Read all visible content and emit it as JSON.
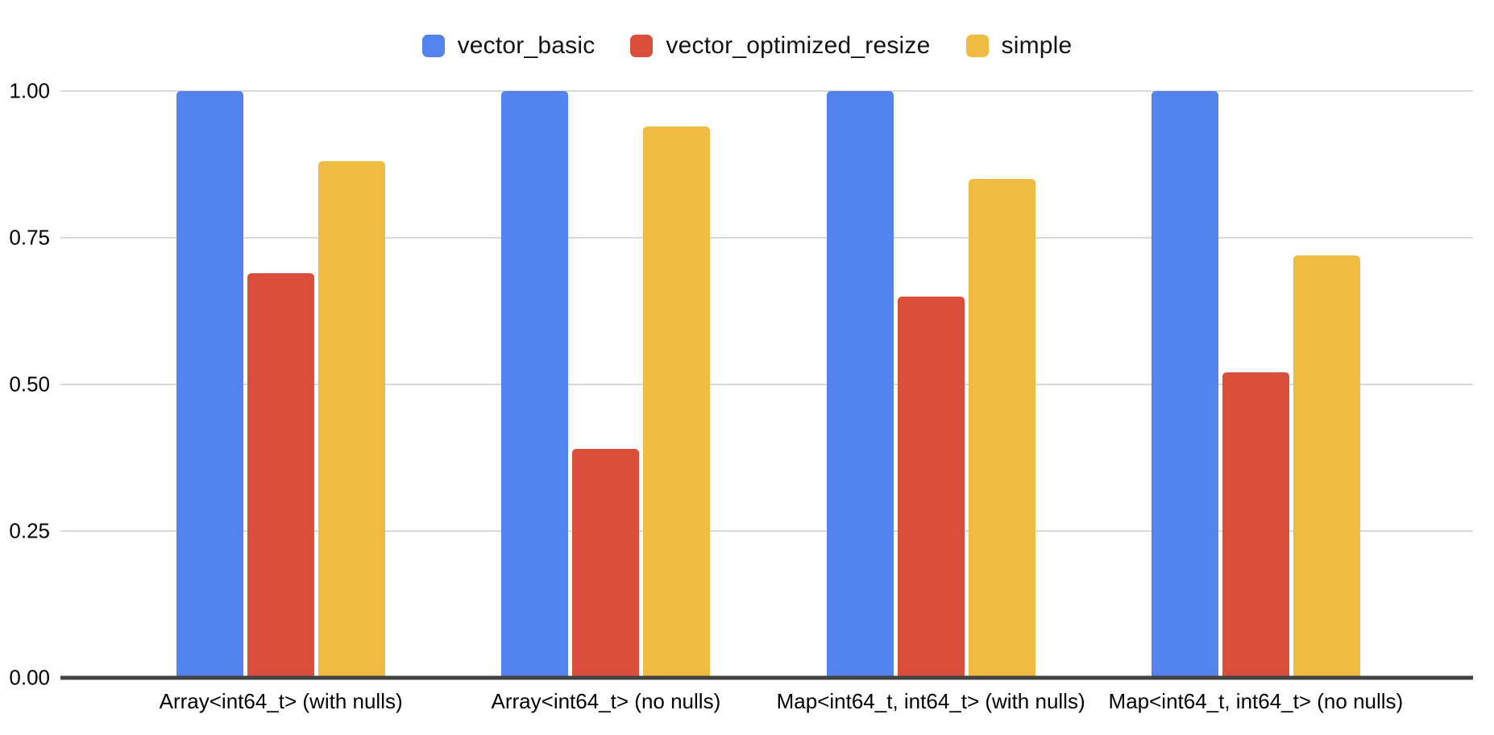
{
  "chart_data": {
    "type": "bar",
    "title": "",
    "xlabel": "",
    "ylabel": "",
    "categories": [
      "Array<int64_t> (with nulls)",
      "Array<int64_t> (no nulls)",
      "Map<int64_t, int64_t> (with nulls)",
      "Map<int64_t, int64_t> (no nulls)"
    ],
    "series": [
      {
        "name": "vector_basic",
        "color": "#5383EC",
        "values": [
          1.0,
          1.0,
          1.0,
          1.0
        ]
      },
      {
        "name": "vector_optimized_resize",
        "color": "#DA4E3C",
        "values": [
          0.69,
          0.39,
          0.65,
          0.52
        ]
      },
      {
        "name": "simple",
        "color": "#F0BB42",
        "values": [
          0.88,
          0.94,
          0.85,
          0.72
        ]
      }
    ],
    "ylim": [
      0,
      1
    ],
    "y_ticks": [
      "1.00",
      "0.75",
      "0.50",
      "0.25",
      "0.00"
    ],
    "grid": true,
    "legend_position": "top",
    "colors": {
      "gridline": "#d9d9d9",
      "axis_line": "#424242",
      "label_text": "#000000",
      "background": "#ffffff"
    }
  }
}
